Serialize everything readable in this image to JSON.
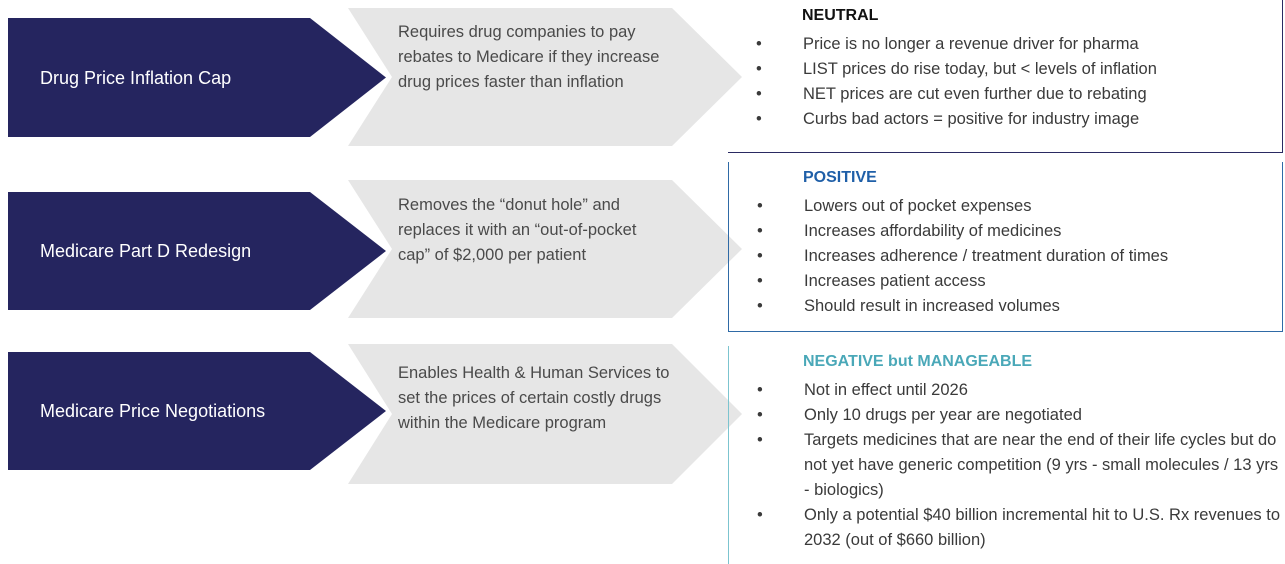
{
  "rows": [
    {
      "label": "Drug Price Inflation Cap",
      "description": "Requires drug companies to pay rebates to Medicare if they increase drug prices faster than inflation",
      "assessment": {
        "heading": "NEUTRAL",
        "bullets": [
          "Price is no longer a revenue driver for pharma",
          "LIST prices do rise today, but < levels of inflation",
          "NET prices are cut even further due to rebating",
          "Curbs bad actors = positive for industry image"
        ]
      }
    },
    {
      "label": "Medicare Part D Redesign",
      "description": "Removes the “donut hole” and replaces it with an  “out-of-pocket cap” of $2,000 per patient",
      "assessment": {
        "heading": "POSITIVE",
        "bullets": [
          "Lowers out of pocket expenses",
          "Increases affordability of medicines",
          "Increases adherence / treatment duration of times",
          "Increases patient access",
          "Should result in increased volumes"
        ]
      }
    },
    {
      "label": "Medicare Price Negotiations",
      "description": "Enables Health & Human Services to set the prices of certain costly drugs within the Medicare program",
      "assessment": {
        "heading": "NEGATIVE but MANAGEABLE",
        "bullets": [
          "Not in effect until 2026",
          "Only 10 drugs per year are negotiated",
          "Targets medicines that are near the end of their life cycles but do not yet have generic competition (9 yrs - small molecules / 13 yrs - biologics)",
          "Only a potential $40 billion incremental hit to U.S. Rx revenues to 2032 (out of $660 billion)"
        ]
      }
    }
  ]
}
